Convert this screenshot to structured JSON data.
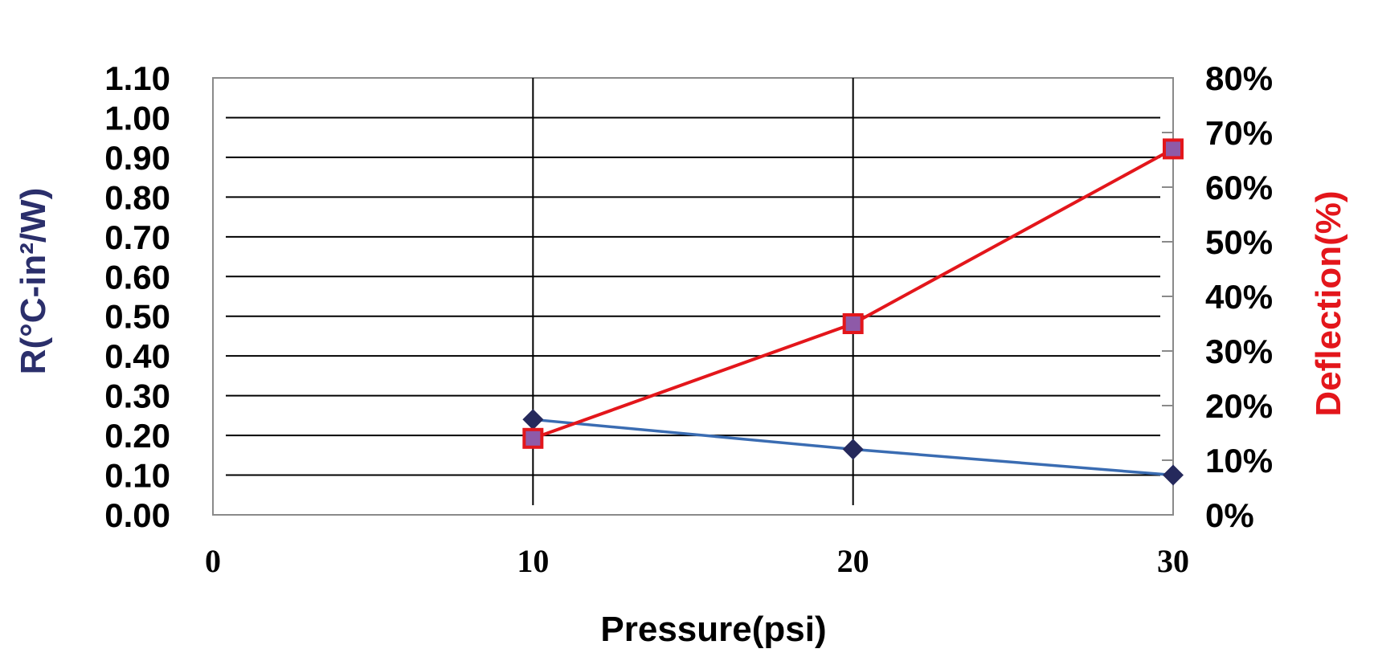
{
  "chart_data": {
    "type": "line",
    "x_axis": {
      "label": "Pressure(psi)",
      "range": [
        0,
        30
      ],
      "ticks": [
        "0",
        "10",
        "20",
        "30"
      ]
    },
    "y_left": {
      "label": "R(°C-in²/W)",
      "label_color": "#2b2f6b",
      "range": [
        0,
        1.1
      ],
      "ticks": [
        "0.00",
        "0.10",
        "0.20",
        "0.30",
        "0.40",
        "0.50",
        "0.60",
        "0.70",
        "0.80",
        "0.90",
        "1.00",
        "1.10"
      ]
    },
    "y_right": {
      "label": "Deflection(%)",
      "label_color": "#e3161b",
      "range": [
        0,
        80
      ],
      "ticks": [
        "0%",
        "10%",
        "20%",
        "30%",
        "40%",
        "50%",
        "60%",
        "70%",
        "80%"
      ]
    },
    "grid": true,
    "series": [
      {
        "axis": "left",
        "x": [
          10,
          20,
          30
        ],
        "values": [
          0.24,
          0.165,
          0.1
        ],
        "line_color": "#3a6cb2",
        "marker": "diamond",
        "marker_color": "#25295c"
      },
      {
        "axis": "right",
        "x": [
          10,
          20,
          30
        ],
        "values": [
          14,
          35,
          67
        ],
        "line_color": "#e3161b",
        "marker": "square",
        "marker_color": "#8e5aa8",
        "marker_edge": "#e3161b"
      }
    ]
  }
}
